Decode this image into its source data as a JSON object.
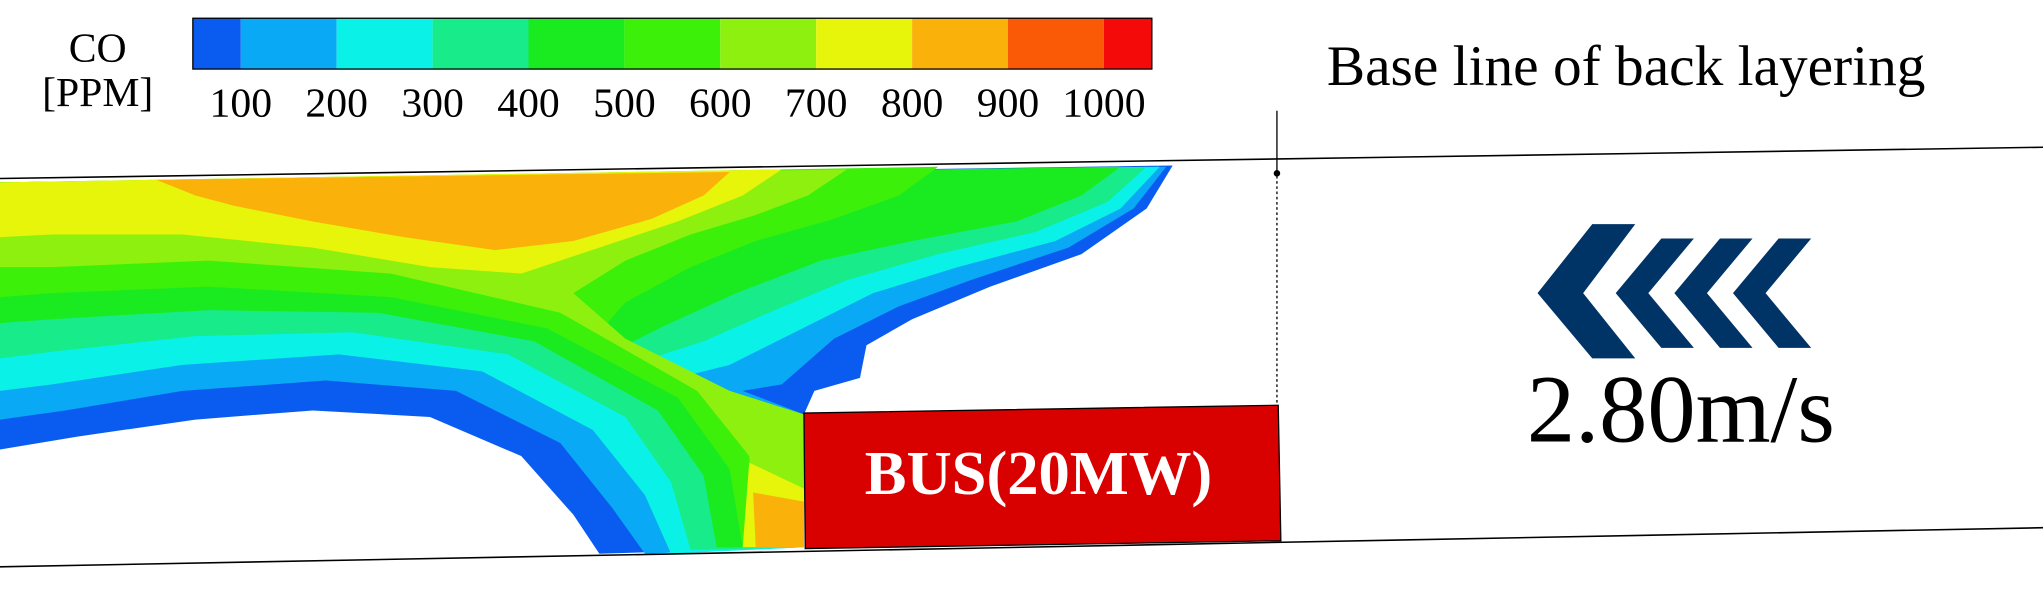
{
  "legend": {
    "title": "CO",
    "unit": "[PPM]",
    "colors": [
      "#0a5cf0",
      "#0aa9f5",
      "#0af2e8",
      "#17eb8a",
      "#1aeb21",
      "#3cf00a",
      "#8ef00f",
      "#e6f50a",
      "#fab20a",
      "#fa5a05",
      "#f50a0a"
    ],
    "ticks": [
      100,
      200,
      300,
      400,
      500,
      600,
      700,
      800,
      900,
      1000
    ]
  },
  "annotation": "Base line of back layering",
  "bus_label": "BUS(20MW)",
  "velocity": "2.80m/s"
}
